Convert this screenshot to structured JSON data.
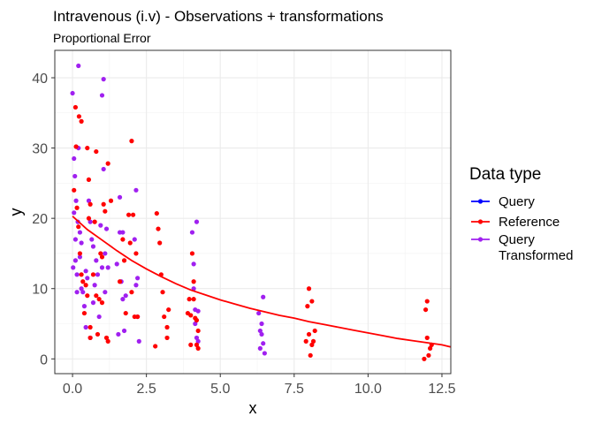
{
  "chart_data": {
    "type": "scatter",
    "title": "Intravenous (i.v) - Observations + transformations",
    "subtitle": "Proportional Error",
    "xlabel": "x",
    "ylabel": "y",
    "xlim": [
      -0.6,
      12.8
    ],
    "ylim": [
      -2.1,
      43.9
    ],
    "x_ticks": [
      0.0,
      2.5,
      5.0,
      7.5,
      10.0,
      12.5
    ],
    "x_tick_labels": [
      "0.0",
      "2.5",
      "5.0",
      "7.5",
      "10.0",
      "12.5"
    ],
    "y_ticks": [
      0,
      10,
      20,
      30,
      40
    ],
    "y_tick_labels": [
      "0",
      "10",
      "20",
      "30",
      "40"
    ],
    "grid": true,
    "legend": {
      "title": "Data type",
      "position": "right",
      "entries": [
        {
          "label": "Query",
          "color": "#0000ff"
        },
        {
          "label": "Reference",
          "color": "#ff0000"
        },
        {
          "label": "Query Transformed",
          "label_lines": [
            "Query",
            "Transformed"
          ],
          "color": "#a020f0"
        }
      ]
    },
    "series": [
      {
        "name": "Reference",
        "color": "#ff0000",
        "x": [
          0.05,
          0.1,
          0.12,
          0.15,
          0.2,
          0.22,
          0.25,
          0.3,
          0.3,
          0.35,
          0.4,
          0.45,
          0.5,
          0.5,
          0.55,
          0.55,
          0.6,
          0.6,
          0.6,
          0.7,
          0.75,
          0.8,
          0.8,
          0.85,
          0.9,
          0.95,
          1.0,
          1.0,
          1.05,
          1.1,
          1.15,
          1.2,
          1.2,
          1.3,
          1.6,
          1.7,
          1.75,
          1.8,
          1.9,
          1.95,
          2.0,
          2.0,
          2.05,
          2.1,
          2.15,
          2.2,
          2.8,
          2.85,
          2.9,
          2.95,
          3.0,
          3.05,
          3.1,
          3.2,
          3.2,
          3.25,
          3.9,
          3.95,
          4.0,
          4.0,
          4.05,
          4.1,
          4.1,
          4.15,
          4.2,
          4.2,
          4.25,
          4.25,
          7.9,
          7.95,
          8.0,
          8.0,
          8.05,
          8.1,
          8.1,
          8.15,
          8.2,
          11.9,
          11.95,
          12.0,
          12.0,
          12.05,
          12.1,
          12.15
        ],
        "y": [
          24.0,
          35.8,
          30.2,
          21.5,
          18.8,
          34.5,
          15.0,
          33.8,
          12.0,
          11.0,
          6.5,
          10.5,
          9.0,
          30.0,
          20.0,
          25.5,
          22.0,
          4.5,
          3.0,
          12.0,
          19.5,
          9.0,
          29.5,
          3.5,
          8.5,
          15.0,
          14.5,
          8.0,
          22.0,
          21.0,
          3.0,
          27.8,
          2.5,
          22.5,
          11.0,
          17.0,
          14.0,
          6.5,
          20.5,
          16.5,
          31.0,
          9.5,
          20.5,
          6.0,
          15.0,
          6.0,
          1.8,
          20.7,
          18.5,
          16.5,
          12.0,
          9.5,
          6.0,
          4.5,
          3.0,
          7.0,
          6.5,
          8.5,
          2.0,
          6.2,
          15.0,
          8.5,
          11.0,
          5.8,
          5.5,
          2.0,
          4.0,
          1.5,
          2.5,
          7.5,
          10.0,
          3.5,
          0.5,
          2.0,
          8.2,
          2.5,
          4.0,
          0.0,
          7.0,
          3.0,
          8.2,
          0.5,
          1.5,
          2.0
        ],
        "fit_curve": {
          "label": "Reference",
          "x": [
            0.0,
            0.5,
            1.0,
            1.5,
            2.0,
            2.5,
            3.0,
            3.5,
            4.0,
            4.5,
            5.0,
            5.5,
            6.0,
            6.5,
            7.0,
            7.5,
            8.0,
            8.5,
            9.0,
            9.5,
            10.0,
            10.5,
            11.0,
            11.5,
            12.0,
            12.5,
            12.8
          ],
          "y": [
            20.3,
            18.4,
            16.9,
            15.4,
            14.0,
            12.8,
            11.7,
            10.7,
            9.8,
            9.1,
            8.4,
            7.8,
            7.2,
            6.7,
            6.2,
            5.8,
            5.3,
            4.9,
            4.5,
            4.1,
            3.7,
            3.3,
            2.9,
            2.6,
            2.3,
            2.0,
            1.7
          ]
        }
      },
      {
        "name": "Query Transformed",
        "color": "#a020f0",
        "x": [
          0.0,
          0.02,
          0.05,
          0.05,
          0.08,
          0.1,
          0.1,
          0.12,
          0.15,
          0.15,
          0.18,
          0.2,
          0.2,
          0.25,
          0.25,
          0.3,
          0.3,
          0.35,
          0.4,
          0.45,
          0.45,
          0.5,
          0.55,
          0.6,
          0.6,
          0.65,
          0.7,
          0.7,
          0.75,
          0.8,
          0.85,
          0.9,
          0.95,
          1.0,
          1.0,
          1.05,
          1.05,
          1.1,
          1.1,
          1.15,
          1.2,
          1.5,
          1.55,
          1.6,
          1.6,
          1.65,
          1.7,
          1.7,
          1.75,
          1.8,
          2.1,
          2.15,
          2.15,
          2.2,
          2.2,
          2.25,
          4.05,
          4.1,
          4.1,
          4.15,
          4.15,
          4.2,
          4.2,
          4.25,
          4.25,
          6.3,
          6.35,
          6.35,
          6.4,
          6.4,
          6.45,
          6.45,
          6.5
        ],
        "y": [
          37.8,
          13.0,
          28.5,
          20.8,
          26.0,
          17.0,
          14.0,
          22.5,
          12.0,
          9.5,
          19.5,
          41.7,
          30.0,
          14.5,
          18.0,
          16.5,
          10.0,
          9.5,
          7.5,
          4.5,
          12.5,
          11.5,
          22.5,
          19.5,
          3.0,
          17.0,
          8.0,
          16.0,
          10.5,
          14.0,
          12.0,
          6.0,
          19.0,
          13.0,
          37.5,
          39.8,
          27.0,
          15.0,
          9.5,
          18.5,
          13.0,
          13.5,
          3.5,
          18.0,
          23.0,
          11.0,
          18.0,
          8.5,
          4.0,
          9.0,
          17.0,
          24.0,
          10.5,
          6.0,
          11.5,
          2.5,
          18.0,
          13.5,
          10.0,
          7.0,
          5.0,
          3.0,
          19.5,
          6.8,
          2.5,
          6.5,
          4.0,
          1.5,
          3.5,
          5.0,
          8.8,
          2.2,
          0.8
        ],
        "pairs_note": ""
      },
      {
        "name": "Query",
        "color": "#0000ff",
        "x": [],
        "y": []
      }
    ]
  }
}
